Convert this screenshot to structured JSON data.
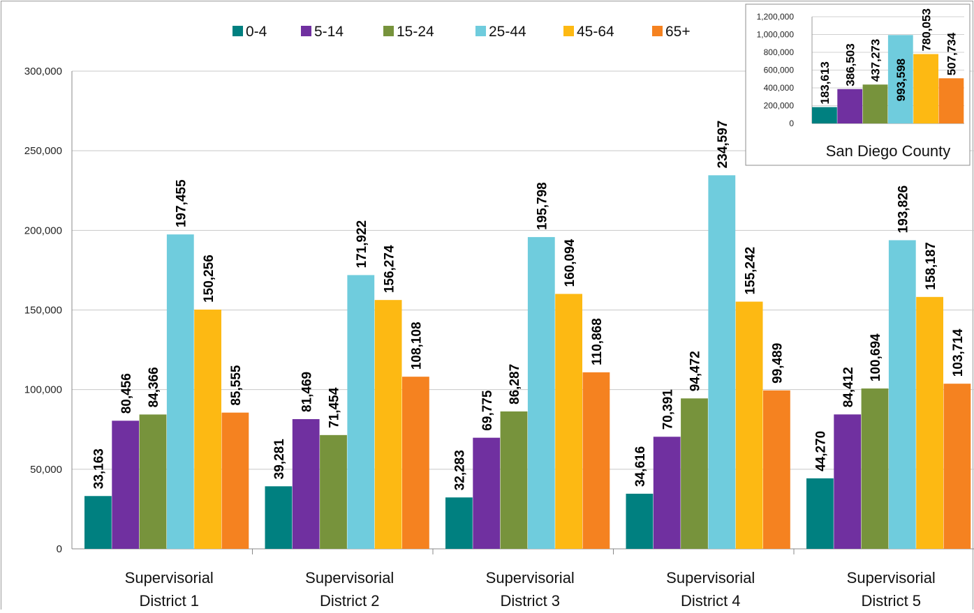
{
  "chart_data": [
    {
      "type": "bar",
      "categories": [
        [
          "Supervisorial",
          "District 1"
        ],
        [
          "Supervisorial",
          "District 2"
        ],
        [
          "Supervisorial",
          "District 3"
        ],
        [
          "Supervisorial",
          "District 4"
        ],
        [
          "Supervisorial",
          "District 5"
        ]
      ],
      "series": [
        {
          "name": "0-4",
          "color": "#008080",
          "values": [
            33163,
            39281,
            32283,
            34616,
            44270
          ]
        },
        {
          "name": "5-14",
          "color": "#7030A0",
          "values": [
            80456,
            81469,
            69775,
            70391,
            84412
          ]
        },
        {
          "name": "15-24",
          "color": "#77933C",
          "values": [
            84366,
            71454,
            86287,
            94472,
            100694
          ]
        },
        {
          "name": "25-44",
          "color": "#6FCCDD",
          "values": [
            197455,
            171922,
            195798,
            234597,
            193826
          ]
        },
        {
          "name": "45-64",
          "color": "#FDB913",
          "values": [
            150256,
            156274,
            160094,
            155242,
            158187
          ]
        },
        {
          "name": "65+",
          "color": "#F58220",
          "values": [
            85555,
            108108,
            110868,
            99489,
            103714
          ]
        }
      ],
      "yticks": [
        "0",
        "50,000",
        "100,000",
        "150,000",
        "200,000",
        "250,000",
        "300,000"
      ],
      "ylim": [
        0,
        300000
      ],
      "legend_position": "top",
      "grid": true
    },
    {
      "type": "bar",
      "title": "San Diego County",
      "categories": [
        "0-4",
        "5-14",
        "15-24",
        "25-44",
        "45-64",
        "65+"
      ],
      "values": [
        183613,
        386503,
        437273,
        993598,
        780053,
        507734
      ],
      "colors": [
        "#008080",
        "#7030A0",
        "#77933C",
        "#6FCCDD",
        "#FDB913",
        "#F58220"
      ],
      "yticks": [
        "0",
        "200,000",
        "400,000",
        "600,000",
        "800,000",
        "1,000,000",
        "1,200,000"
      ],
      "ylim": [
        0,
        1200000
      ],
      "grid": true
    }
  ]
}
